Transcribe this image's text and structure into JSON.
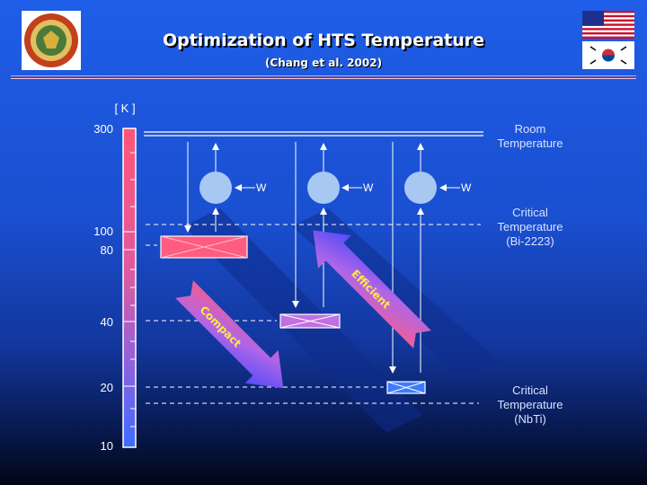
{
  "title": "Optimization of HTS Temperature",
  "subtitle": "(Chang et al. 2002)",
  "axis_unit": "[ K ]",
  "ticks": [
    "300",
    "100",
    "80",
    "40",
    "20",
    "10"
  ],
  "right_labels": {
    "room": [
      "Room",
      "Temperature"
    ],
    "bi": [
      "Critical",
      "Temperature",
      "(Bi-2223)"
    ],
    "nbti": [
      "Critical",
      "Temperature",
      "(NbTi)"
    ]
  },
  "work_label": "W",
  "arrow_labels": {
    "compact": "Compact",
    "efficient": "Efficient"
  },
  "colors": {
    "accent_pink": "#ff5c82",
    "purple": "#b06bdc",
    "arrow_blue": "#3d45ff"
  }
}
